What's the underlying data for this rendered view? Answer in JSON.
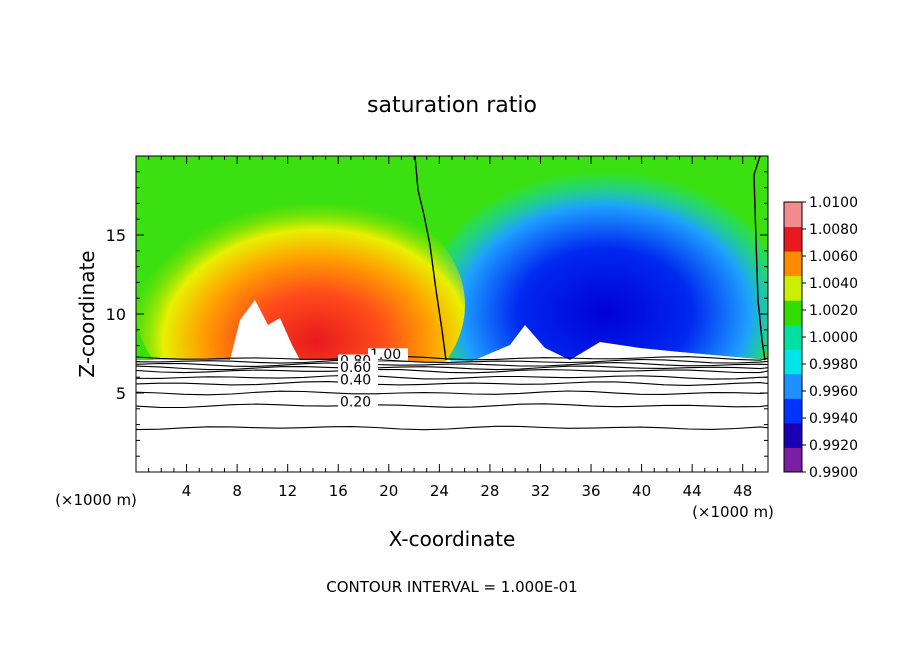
{
  "chart_data": {
    "type": "heatmap",
    "title": "saturation ratio",
    "xlabel": "X-coordinate",
    "ylabel": "Z-coordinate",
    "x_unit_left": "(×1000 m)",
    "x_unit_right": "(×1000 m)",
    "footer": "CONTOUR INTERVAL = 1.000E-01",
    "xlim": [
      0,
      50
    ],
    "ylim": [
      0,
      20
    ],
    "x_ticks": [
      4,
      8,
      12,
      16,
      20,
      24,
      28,
      32,
      36,
      40,
      44,
      48
    ],
    "y_ticks": [
      5,
      10,
      15
    ],
    "colorbar": {
      "min": 0.99,
      "max": 1.01,
      "levels": [
        0.99,
        0.992,
        0.994,
        0.996,
        0.998,
        1.0,
        1.002,
        1.004,
        1.006,
        1.008,
        1.01
      ],
      "labels": [
        "1.0100",
        "1.0080",
        "1.0060",
        "1.0040",
        "1.0020",
        "1.0000",
        "0.9980",
        "0.9960",
        "0.9940",
        "0.9920",
        "0.9900"
      ],
      "colors": [
        "#7b1fa2",
        "#1a00b4",
        "#0033ff",
        "#1e90ff",
        "#00e5e5",
        "#00e0a0",
        "#33dd00",
        "#ccee00",
        "#ff8c00",
        "#e8191e",
        "#f08c8c"
      ]
    },
    "contours": [
      {
        "level": 1.0,
        "label": "1.00",
        "z": 7.2
      },
      {
        "level": 0.9,
        "label": "",
        "z": 7.0
      },
      {
        "level": 0.8,
        "label": "0.80",
        "z": 6.8
      },
      {
        "level": 0.7,
        "label": "",
        "z": 6.6
      },
      {
        "level": 0.6,
        "label": "0.60",
        "z": 6.4
      },
      {
        "level": 0.5,
        "label": "",
        "z": 6.0
      },
      {
        "level": 0.4,
        "label": "0.40",
        "z": 5.6
      },
      {
        "level": 0.3,
        "label": "",
        "z": 5.0
      },
      {
        "level": 0.2,
        "label": "0.20",
        "z": 4.2
      },
      {
        "level": 0.1,
        "label": "",
        "z": 2.8
      }
    ]
  }
}
